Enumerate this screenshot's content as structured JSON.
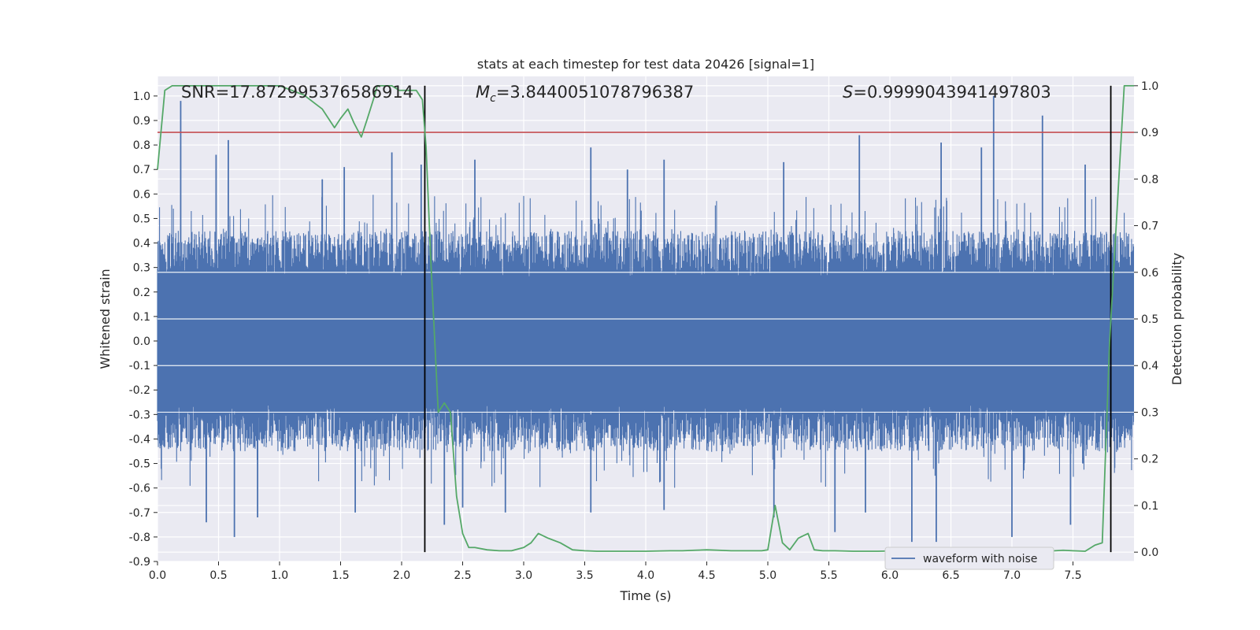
{
  "chart_data": {
    "type": "line",
    "title": "stats at each timestep for test data 20426 [signal=1]",
    "xlabel": "Time (s)",
    "ylabel": "Whitened strain",
    "y2label": "Detection probability",
    "xlim": [
      0.0,
      8.0
    ],
    "ylim": [
      -0.9,
      1.08
    ],
    "y2lim": [
      -0.02,
      1.02
    ],
    "x_ticks": [
      "0.0",
      "0.5",
      "1.0",
      "1.5",
      "2.0",
      "2.5",
      "3.0",
      "3.5",
      "4.0",
      "4.5",
      "5.0",
      "5.5",
      "6.0",
      "6.5",
      "7.0",
      "7.5"
    ],
    "y_ticks": [
      "-0.9",
      "-0.8",
      "-0.7",
      "-0.6",
      "-0.5",
      "-0.4",
      "-0.3",
      "-0.2",
      "-0.1",
      "0.0",
      "0.1",
      "0.2",
      "0.3",
      "0.4",
      "0.5",
      "0.6",
      "0.7",
      "0.8",
      "0.9",
      "1.0"
    ],
    "y2_ticks": [
      "0.0",
      "0.1",
      "0.2",
      "0.3",
      "0.4",
      "0.5",
      "0.6",
      "0.7",
      "0.8",
      "0.9",
      "1.0"
    ],
    "grid": true,
    "legend_position": "lower-right",
    "annotations": {
      "snr": "SNR=17.872995376586914",
      "mc_symbol": "M",
      "mc_sub": "c",
      "mc_value": "=3.8440051078796387",
      "s_symbol": "S",
      "s_value": "=0.9999043941497803"
    },
    "threshold_line": {
      "axis": "y2",
      "value": 0.9,
      "color": "#c44e52"
    },
    "vertical_markers": [
      2.19,
      7.81
    ],
    "marker_range_y2": [
      0.0,
      1.0
    ],
    "series": [
      {
        "name": "waveform with noise",
        "axis": "y",
        "color": "#4c72b0",
        "style": "dense-noise",
        "envelope_top": 0.45,
        "envelope_bottom": -0.45,
        "spikes_up": [
          [
            0.19,
            0.98
          ],
          [
            0.58,
            0.82
          ],
          [
            0.48,
            0.76
          ],
          [
            1.35,
            0.66
          ],
          [
            1.53,
            0.71
          ],
          [
            1.92,
            0.77
          ],
          [
            2.16,
            0.72
          ],
          [
            2.6,
            0.74
          ],
          [
            3.55,
            0.79
          ],
          [
            3.85,
            0.7
          ],
          [
            4.15,
            0.74
          ],
          [
            5.13,
            0.73
          ],
          [
            5.75,
            0.84
          ],
          [
            6.75,
            0.79
          ],
          [
            6.85,
            1.0
          ],
          [
            7.25,
            0.92
          ],
          [
            7.6,
            0.72
          ],
          [
            6.42,
            0.81
          ]
        ],
        "spikes_down": [
          [
            0.4,
            -0.74
          ],
          [
            0.63,
            -0.8
          ],
          [
            0.82,
            -0.72
          ],
          [
            1.62,
            -0.7
          ],
          [
            2.35,
            -0.75
          ],
          [
            2.5,
            -0.68
          ],
          [
            2.85,
            -0.7
          ],
          [
            3.55,
            -0.7
          ],
          [
            4.15,
            -0.69
          ],
          [
            5.05,
            -0.72
          ],
          [
            5.55,
            -0.78
          ],
          [
            5.8,
            -0.7
          ],
          [
            6.18,
            -0.82
          ],
          [
            6.38,
            -0.82
          ],
          [
            7.0,
            -0.8
          ],
          [
            7.48,
            -0.75
          ],
          [
            7.58,
            -0.5
          ]
        ]
      },
      {
        "name": "",
        "axis": "y2",
        "color": "#55a868",
        "x": [
          0.0,
          0.06,
          0.12,
          0.18,
          0.25,
          0.35,
          0.5,
          0.6,
          0.7,
          0.8,
          0.9,
          1.0,
          1.1,
          1.2,
          1.3,
          1.35,
          1.45,
          1.5,
          1.56,
          1.61,
          1.67,
          1.72,
          1.78,
          1.8,
          1.84,
          1.92,
          1.98,
          2.02,
          2.07,
          2.12,
          2.17,
          2.2,
          2.24,
          2.3,
          2.35,
          2.4,
          2.45,
          2.5,
          2.55,
          2.6,
          2.7,
          2.8,
          2.9,
          3.0,
          3.06,
          3.12,
          3.2,
          3.3,
          3.4,
          3.5,
          3.6,
          3.7,
          3.8,
          4.0,
          4.2,
          4.3,
          4.4,
          4.5,
          4.6,
          4.7,
          4.8,
          4.9,
          4.95,
          5.0,
          5.06,
          5.12,
          5.18,
          5.25,
          5.33,
          5.38,
          5.45,
          5.55,
          5.7,
          5.9,
          6.1,
          6.2,
          6.3,
          6.4,
          6.5,
          6.6,
          6.8,
          7.0,
          7.2,
          7.35,
          7.42,
          7.5,
          7.6,
          7.68,
          7.74,
          7.8,
          7.88,
          7.92,
          8.0
        ],
        "y": [
          0.82,
          0.99,
          1.0,
          1.0,
          1.0,
          1.0,
          1.0,
          1.0,
          1.0,
          1.0,
          1.0,
          1.0,
          0.99,
          0.98,
          0.96,
          0.95,
          0.91,
          0.93,
          0.95,
          0.92,
          0.89,
          0.93,
          0.98,
          1.0,
          1.0,
          1.0,
          0.99,
          0.99,
          0.99,
          0.99,
          0.97,
          0.87,
          0.62,
          0.3,
          0.32,
          0.3,
          0.12,
          0.04,
          0.01,
          0.01,
          0.005,
          0.003,
          0.003,
          0.01,
          0.02,
          0.04,
          0.03,
          0.02,
          0.005,
          0.003,
          0.002,
          0.002,
          0.002,
          0.002,
          0.003,
          0.003,
          0.004,
          0.005,
          0.004,
          0.003,
          0.003,
          0.003,
          0.003,
          0.005,
          0.1,
          0.02,
          0.005,
          0.03,
          0.04,
          0.005,
          0.003,
          0.003,
          0.002,
          0.002,
          0.003,
          0.004,
          0.005,
          0.003,
          0.006,
          0.003,
          0.003,
          0.002,
          0.002,
          0.003,
          0.004,
          0.003,
          0.002,
          0.015,
          0.02,
          0.45,
          0.82,
          1.0,
          1.0
        ]
      }
    ]
  }
}
